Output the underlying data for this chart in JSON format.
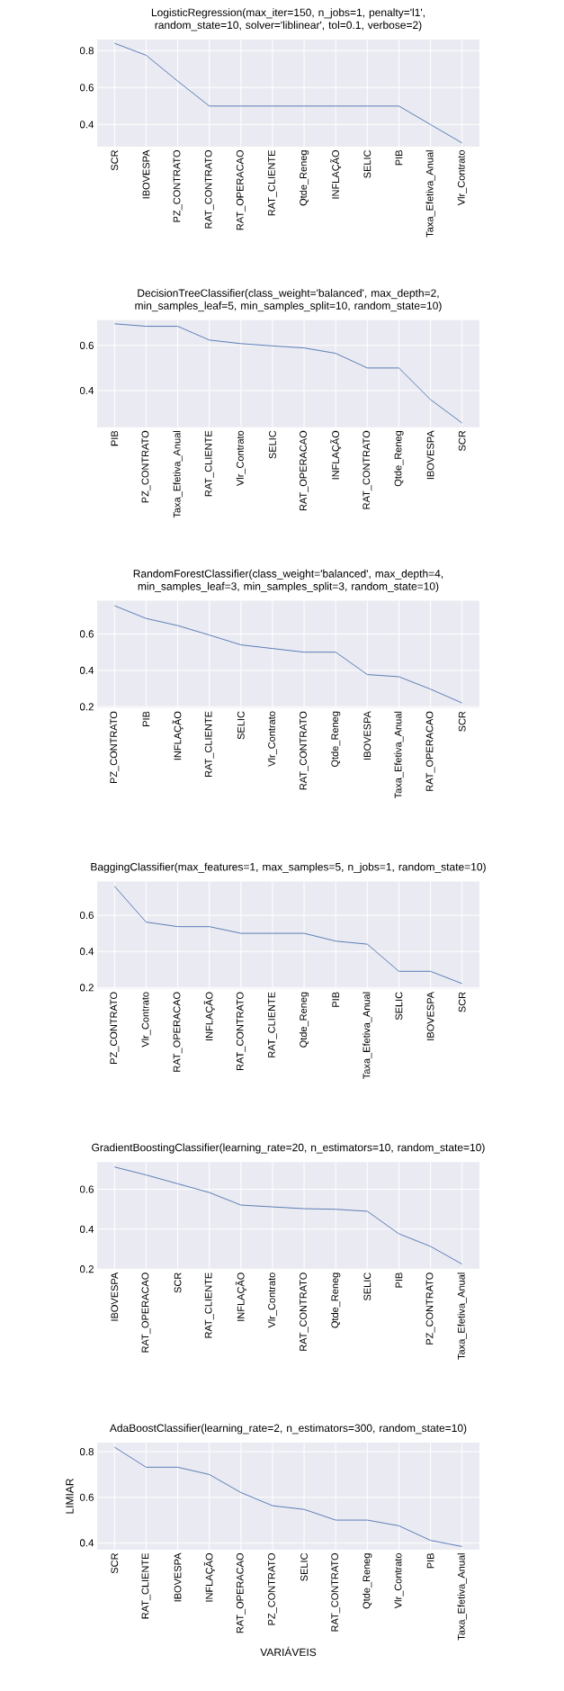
{
  "chart_data": [
    {
      "type": "line",
      "title": "LogisticRegression(max_iter=150, n_jobs=1, penalty='l1', random_state=10, solver='liblinear', tol=0.1, verbose=2)",
      "categories": [
        "SCR",
        "IBOVESPA",
        "PZ_CONTRATO",
        "RAT_CONTRATO",
        "RAT_OPERACAO",
        "RAT_CLIENTE",
        "Qtde_Reneg",
        "INFLAÇÃO",
        "SELIC",
        "PIB",
        "Taxa_Efetiva_Anual",
        "Vlr_Contrato"
      ],
      "values": [
        0.84,
        0.775,
        0.635,
        0.5,
        0.5,
        0.5,
        0.5,
        0.5,
        0.5,
        0.5,
        0.4,
        0.3
      ],
      "color": "#4c72b0",
      "ylim": [
        0.28,
        0.86
      ],
      "yticks": [
        0.4,
        0.6,
        0.8
      ],
      "grid": true
    },
    {
      "type": "line",
      "title": "DecisionTreeClassifier(class_weight='balanced', max_depth=2, min_samples_leaf=5, min_samples_split=10, random_state=10)",
      "categories": [
        "PIB",
        "PZ_CONTRATO",
        "Taxa_Efetiva_Anual",
        "RAT_CLIENTE",
        "Vlr_Contrato",
        "SELIC",
        "RAT_OPERACAO",
        "INFLAÇÃO",
        "RAT_CONTRATO",
        "Qtde_Reneg",
        "IBOVESPA",
        "SCR"
      ],
      "values": [
        0.696,
        0.685,
        0.685,
        0.624,
        0.608,
        0.598,
        0.589,
        0.565,
        0.5,
        0.5,
        0.36,
        0.256
      ],
      "color": "#4c72b0",
      "ylim": [
        0.237,
        0.712
      ],
      "yticks": [
        0.4,
        0.6
      ],
      "grid": true
    },
    {
      "type": "line",
      "title": "RandomForestClassifier(class_weight='balanced', max_depth=4, min_samples_leaf=3, min_samples_split=3, random_state=10)",
      "categories": [
        "PZ_CONTRATO",
        "PIB",
        "INFLAÇÃO",
        "RAT_CLIENTE",
        "SELIC",
        "Vlr_Contrato",
        "RAT_CONTRATO",
        "Qtde_Reneg",
        "IBOVESPA",
        "Taxa_Efetiva_Anual",
        "RAT_OPERACAO",
        "SCR"
      ],
      "values": [
        0.755,
        0.685,
        0.646,
        0.594,
        0.54,
        0.52,
        0.5,
        0.5,
        0.377,
        0.365,
        0.297,
        0.221
      ],
      "color": "#4c72b0",
      "ylim": [
        0.194,
        0.782
      ],
      "yticks": [
        0.2,
        0.4,
        0.6
      ],
      "grid": true
    },
    {
      "type": "line",
      "title": "BaggingClassifier(max_features=1, max_samples=5, n_jobs=1, random_state=10)",
      "categories": [
        "PZ_CONTRATO",
        "Vlr_Contrato",
        "RAT_OPERACAO",
        "INFLAÇÃO",
        "RAT_CONTRATO",
        "RAT_CLIENTE",
        "Qtde_Reneg",
        "PIB",
        "Taxa_Efetiva_Anual",
        "SELIC",
        "IBOVESPA",
        "SCR"
      ],
      "values": [
        0.76,
        0.562,
        0.537,
        0.537,
        0.5,
        0.5,
        0.5,
        0.457,
        0.44,
        0.29,
        0.29,
        0.222
      ],
      "color": "#4c72b0",
      "ylim": [
        0.195,
        0.787
      ],
      "yticks": [
        0.2,
        0.4,
        0.6
      ],
      "grid": true
    },
    {
      "type": "line",
      "title": "GradientBoostingClassifier(learning_rate=20, n_estimators=10, random_state=10)",
      "categories": [
        "IBOVESPA",
        "RAT_OPERACAO",
        "SCR",
        "RAT_CLIENTE",
        "INFLAÇÃO",
        "Vlr_Contrato",
        "RAT_CONTRATO",
        "Qtde_Reneg",
        "SELIC",
        "PIB",
        "PZ_CONTRATO",
        "Taxa_Efetiva_Anual"
      ],
      "values": [
        0.712,
        0.672,
        0.628,
        0.584,
        0.521,
        0.512,
        0.503,
        0.5,
        0.49,
        0.377,
        0.314,
        0.225
      ],
      "color": "#4c72b0",
      "ylim": [
        0.2,
        0.737
      ],
      "yticks": [
        0.2,
        0.4,
        0.6
      ],
      "grid": true
    },
    {
      "type": "line",
      "title": "AdaBoostClassifier(learning_rate=2, n_estimators=300, random_state=10)",
      "xlabel": "VARIÁVEIS",
      "ylabel": "LIMIAR",
      "categories": [
        "SCR",
        "RAT_CLIENTE",
        "IBOVESPA",
        "INFLAÇÃO",
        "RAT_OPERACAO",
        "PZ_CONTRATO",
        "SELIC",
        "RAT_CONTRATO",
        "Qtde_Reneg",
        "Vlr_Contrato",
        "PIB",
        "Taxa_Efetiva_Anual"
      ],
      "values": [
        0.82,
        0.732,
        0.732,
        0.7,
        0.621,
        0.563,
        0.547,
        0.5,
        0.5,
        0.475,
        0.411,
        0.384
      ],
      "color": "#4c72b0",
      "ylim": [
        0.37,
        0.84
      ],
      "yticks": [
        0.4,
        0.6,
        0.8
      ],
      "grid": true
    }
  ]
}
